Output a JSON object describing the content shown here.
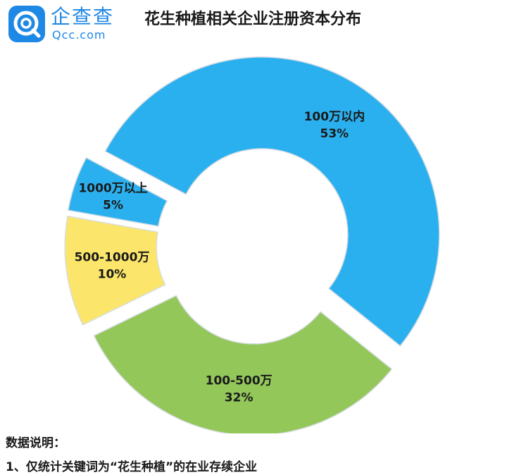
{
  "brand": {
    "name": "企查查",
    "domain": "Qcc.com",
    "logo_icon": "qcc-logo-icon",
    "color": "#1e88e5"
  },
  "chart_data": {
    "type": "pie",
    "variant": "donut",
    "title": "花生种植相关企业注册资本分布",
    "slices": [
      {
        "label": "100万以内",
        "percent_label": "53%",
        "value": 53,
        "color": "#2bb0ef"
      },
      {
        "label": "100-500万",
        "percent_label": "32%",
        "value": 32,
        "color": "#93c75a"
      },
      {
        "label": "500-1000万",
        "percent_label": "10%",
        "value": 10,
        "color": "#fbe66b"
      },
      {
        "label": "1000万以上",
        "percent_label": "5%",
        "value": 5,
        "color": "#2bb0ef"
      }
    ]
  },
  "notes": {
    "heading": "数据说明：",
    "lines": [
      "1、仅统计关键词为“花生种植”的在业存续企业"
    ]
  }
}
